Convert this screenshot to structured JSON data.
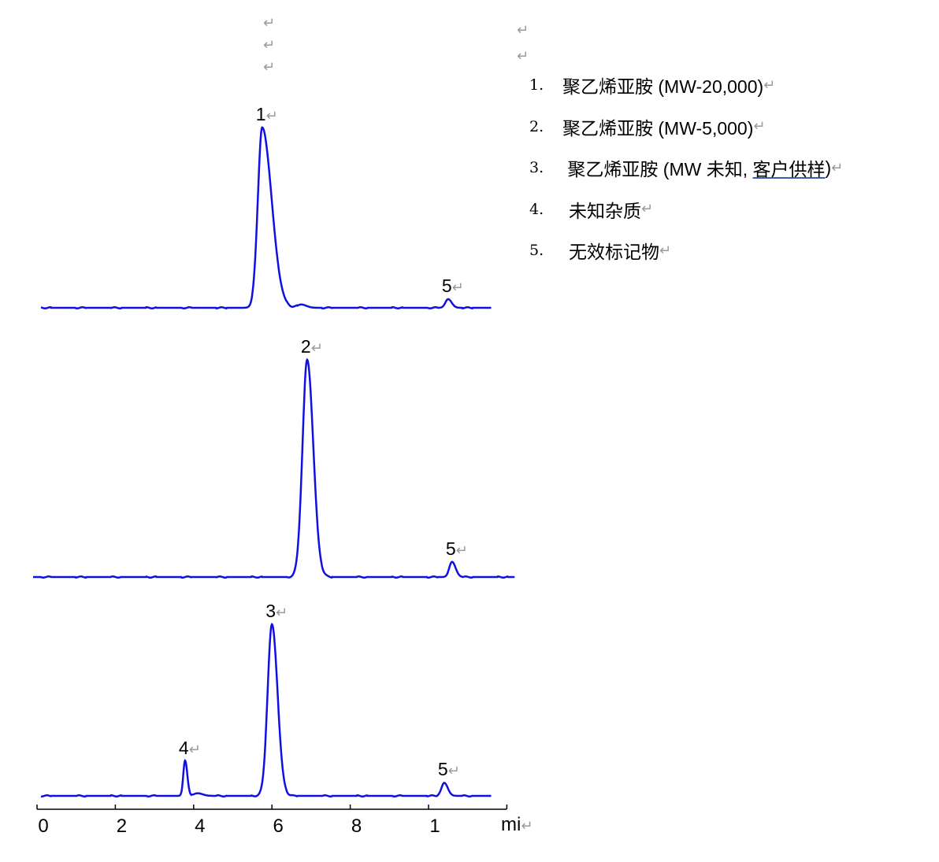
{
  "paragraph_mark": "↵",
  "legend": [
    {
      "num": "1.",
      "text": "聚乙烯亚胺  (MW-20,000)"
    },
    {
      "num": "2.",
      "text": "聚乙烯亚胺  (MW-5,000)"
    },
    {
      "num": "3.",
      "text": " 聚乙烯亚胺 (MW 未知, ",
      "underlined": "客户供样",
      "after": ")"
    },
    {
      "num": "4.",
      "text": " 未知杂质"
    },
    {
      "num": "5.",
      "text": " 无效标记物"
    }
  ],
  "chart_data": {
    "type": "line",
    "xlabel": "mi",
    "x_tick_labels": [
      "0",
      "2",
      "4",
      "6",
      "8",
      "1"
    ],
    "xlim": [
      0,
      12
    ],
    "colors": {
      "trace": "#1010e0"
    },
    "grid": false,
    "series": [
      {
        "peaks": [
          {
            "label": "1",
            "rt": 5.75,
            "height": 83
          },
          {
            "label": "",
            "rt": 6.75,
            "height": 1.5
          },
          {
            "label": "5",
            "rt": 10.5,
            "height": 4
          }
        ],
        "x_range": [
          0.1,
          11.6
        ]
      },
      {
        "peaks": [
          {
            "label": "2",
            "rt": 6.9,
            "height": 100
          },
          {
            "label": "5",
            "rt": 10.6,
            "height": 7
          }
        ],
        "x_range": [
          -0.1,
          12.2
        ]
      },
      {
        "peaks": [
          {
            "label": "4",
            "rt": 3.78,
            "height": 16
          },
          {
            "label": "",
            "rt": 4.1,
            "height": 1.2
          },
          {
            "label": "3",
            "rt": 6.0,
            "height": 79
          },
          {
            "label": "5",
            "rt": 10.4,
            "height": 6
          }
        ],
        "x_range": [
          0.1,
          11.6
        ]
      }
    ]
  }
}
